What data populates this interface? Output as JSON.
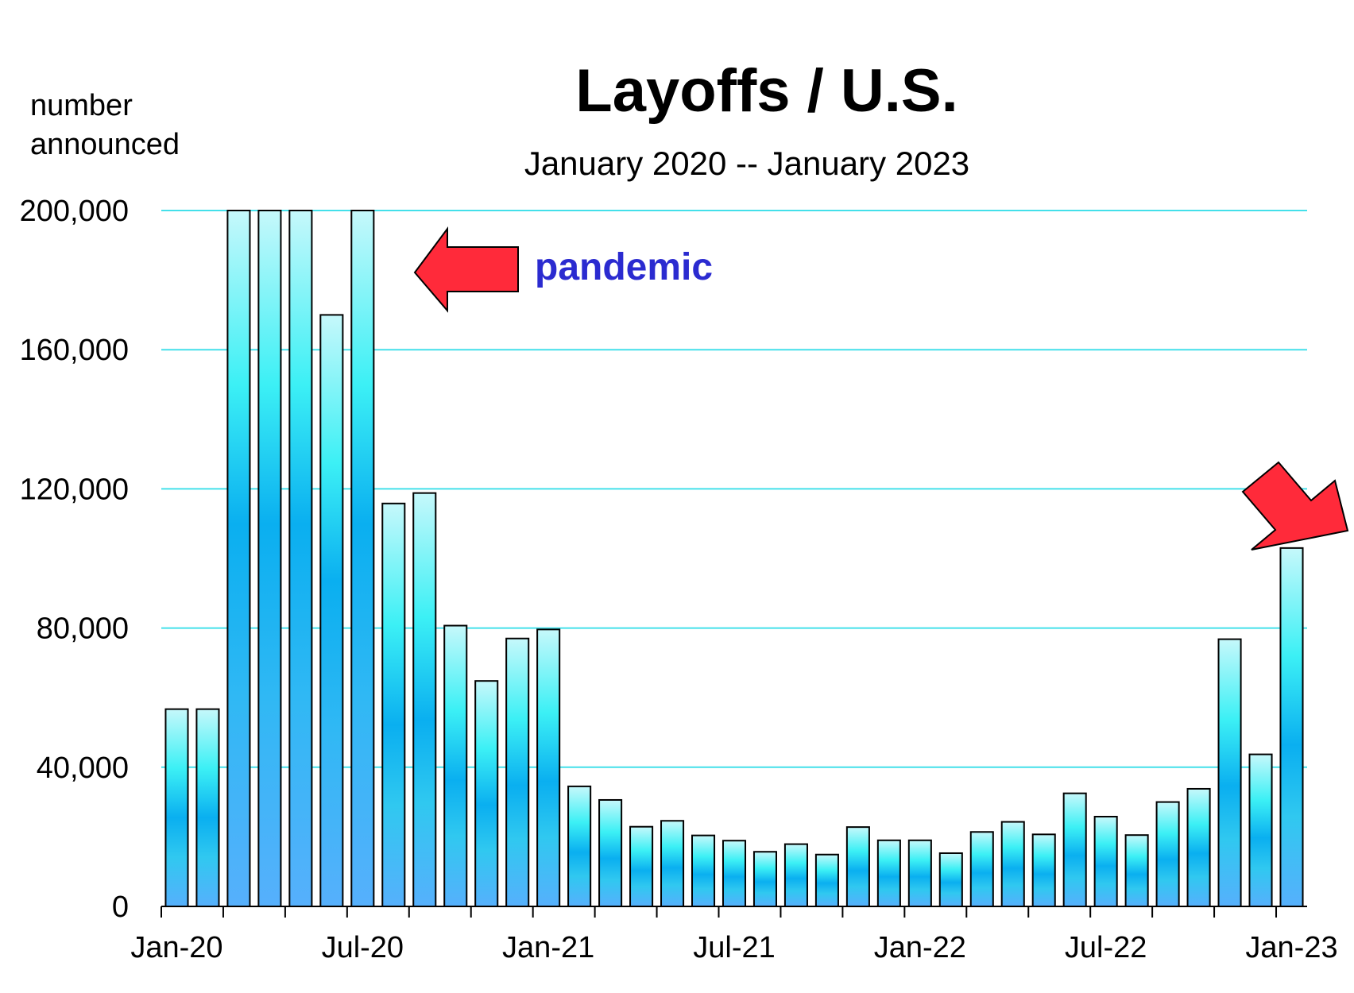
{
  "chart_data": {
    "type": "bar",
    "title": "Layoffs / U.S.",
    "subtitle": "January 2020 -- January 2023",
    "ylabel_line1": "number",
    "ylabel_line2": "announced",
    "ylim": [
      0,
      200000
    ],
    "yticks": [
      0,
      40000,
      80000,
      120000,
      160000,
      200000
    ],
    "ytick_labels": [
      "0",
      "40,000",
      "80,000",
      "120,000",
      "160,000",
      "200,000"
    ],
    "grid": true,
    "categories": [
      "Jan-20",
      "Feb-20",
      "Mar-20",
      "Apr-20",
      "May-20",
      "Jun-20",
      "Jul-20",
      "Aug-20",
      "Sep-20",
      "Oct-20",
      "Nov-20",
      "Dec-20",
      "Jan-21",
      "Feb-21",
      "Mar-21",
      "Apr-21",
      "May-21",
      "Jun-21",
      "Jul-21",
      "Aug-21",
      "Sep-21",
      "Oct-21",
      "Nov-21",
      "Dec-21",
      "Jan-22",
      "Feb-22",
      "Mar-22",
      "Apr-22",
      "May-22",
      "Jun-22",
      "Jul-22",
      "Aug-22",
      "Sep-22",
      "Oct-22",
      "Nov-22",
      "Dec-22",
      "Jan-23"
    ],
    "values": [
      56700,
      56700,
      200000,
      200000,
      200000,
      170000,
      200000,
      115800,
      118800,
      80700,
      64800,
      77000,
      79600,
      34500,
      30600,
      22900,
      24600,
      20400,
      18900,
      15700,
      17900,
      14900,
      22800,
      19000,
      19000,
      15300,
      21400,
      24300,
      20700,
      32500,
      25800,
      20500,
      30000,
      33800,
      76800,
      43700,
      103000
    ],
    "xtick_labels": [
      {
        "label": "Jan-20",
        "index": 0
      },
      {
        "label": "Jul-20",
        "index": 6
      },
      {
        "label": "Jan-21",
        "index": 12
      },
      {
        "label": "Jul-21",
        "index": 18
      },
      {
        "label": "Jan-22",
        "index": 24
      },
      {
        "label": "Jul-22",
        "index": 30
      },
      {
        "label": "Jan-23",
        "index": 36
      }
    ],
    "annotations": [
      {
        "text": "pandemic",
        "color": "#2b2bd0"
      }
    ],
    "colors": {
      "bar_light": "#bff7fb",
      "bar_cyan": "#3cf0f5",
      "bar_blue": "#0aaff0",
      "bar_base": "#4fb0fc",
      "grid": "#44e0ea",
      "arrow": "#ff2a3a"
    }
  }
}
